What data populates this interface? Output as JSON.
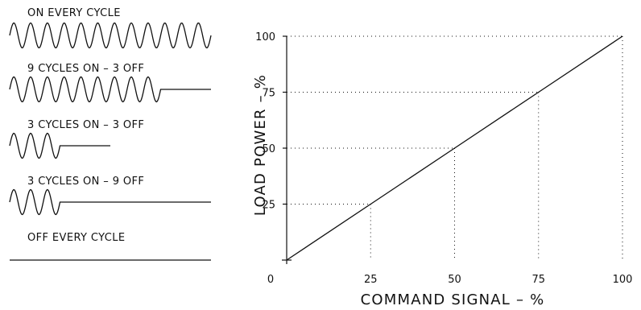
{
  "waveforms": [
    {
      "caption": "ON EVERY CYCLE",
      "on_cycles": 12,
      "off_cycles": 0
    },
    {
      "caption": "9 CYCLES ON – 3 OFF",
      "on_cycles": 9,
      "off_cycles": 3
    },
    {
      "caption": "3 CYCLES ON – 3 OFF",
      "on_cycles": 3,
      "off_cycles": 3
    },
    {
      "caption": "3 CYCLES ON – 9 OFF",
      "on_cycles": 3,
      "off_cycles": 9
    },
    {
      "caption": "OFF EVERY CYCLE",
      "on_cycles": 0,
      "off_cycles": 12
    }
  ],
  "chart_data": {
    "type": "line",
    "title": "",
    "xlabel": "COMMAND SIGNAL – %",
    "ylabel": "LOAD POWER – %",
    "xlim": [
      0,
      100
    ],
    "ylim": [
      0,
      100
    ],
    "x_ticks": [
      "0",
      "25",
      "50",
      "75",
      "100"
    ],
    "y_ticks": [
      "25",
      "50",
      "75",
      "100"
    ],
    "grid": "dotted",
    "series": [
      {
        "x": [
          0,
          25,
          50,
          75,
          100
        ],
        "y": [
          0,
          25,
          50,
          75,
          100
        ]
      }
    ]
  }
}
